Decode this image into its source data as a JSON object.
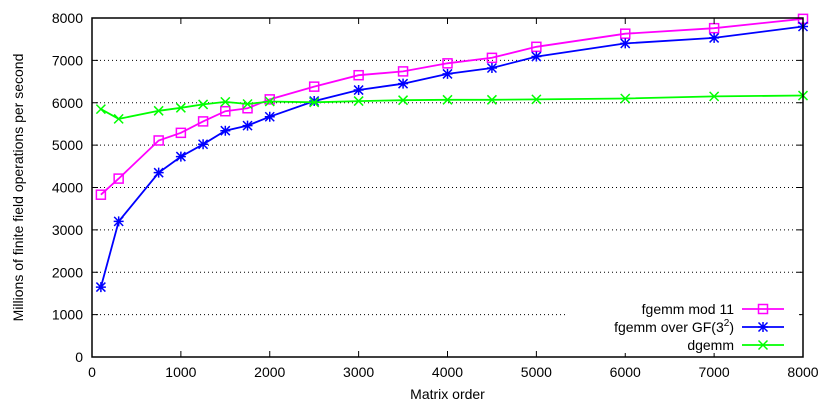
{
  "chart_data": {
    "type": "line",
    "title": "",
    "xlabel": "Matrix order",
    "ylabel": "Millions of finite field operations per second",
    "xlim": [
      0,
      8000
    ],
    "ylim": [
      0,
      8000
    ],
    "xticks": [
      "0",
      "1000",
      "2000",
      "3000",
      "4000",
      "5000",
      "6000",
      "7000",
      "8000"
    ],
    "yticks": [
      "0",
      "1000",
      "2000",
      "3000",
      "4000",
      "5000",
      "6000",
      "7000",
      "8000"
    ],
    "grid": "horizontal-dotted",
    "legend_position": "bottom-right",
    "series": [
      {
        "name": "fgemm mod 11",
        "color": "#ff00ff",
        "marker": "open-square",
        "x": [
          100,
          300,
          750,
          1000,
          1250,
          1500,
          1750,
          2000,
          2500,
          3000,
          3500,
          4000,
          4500,
          5000,
          6000,
          7000,
          8000
        ],
        "y": [
          3830,
          4210,
          5110,
          5290,
          5560,
          5800,
          5870,
          6080,
          6380,
          6650,
          6740,
          6930,
          7060,
          7320,
          7630,
          7760,
          7980
        ]
      },
      {
        "name_prefix": "fgemm over GF(3",
        "name_sup": "2",
        "name_suffix": ")",
        "color": "#0000ff",
        "marker": "star",
        "x": [
          100,
          300,
          750,
          1000,
          1250,
          1500,
          1750,
          2000,
          2500,
          3000,
          3500,
          4000,
          4500,
          5000,
          6000,
          7000,
          8000
        ],
        "y": [
          1650,
          3200,
          4350,
          4730,
          5020,
          5340,
          5460,
          5670,
          6040,
          6300,
          6450,
          6680,
          6820,
          7090,
          7400,
          7530,
          7800
        ]
      },
      {
        "name": "dgemm",
        "color": "#00ff00",
        "marker": "x",
        "x": [
          100,
          300,
          750,
          1000,
          1250,
          1500,
          1750,
          2000,
          2500,
          3000,
          3500,
          4000,
          4500,
          5000,
          6000,
          7000,
          8000
        ],
        "y": [
          5850,
          5620,
          5810,
          5880,
          5960,
          6020,
          5970,
          6030,
          6010,
          6040,
          6060,
          6070,
          6070,
          6080,
          6100,
          6150,
          6170
        ]
      }
    ]
  }
}
